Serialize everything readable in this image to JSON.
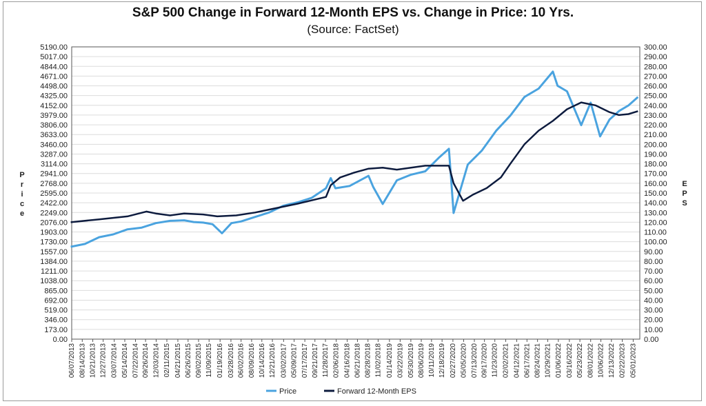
{
  "chart_data": {
    "type": "line",
    "title": "S&P 500 Change in Forward 12-Month EPS vs. Change in Price: 10 Yrs.",
    "subtitle": "(Source: FactSet)",
    "ylabel": "Price",
    "y2label": "EPS",
    "ylim": [
      0,
      5190
    ],
    "y2lim": [
      0,
      300
    ],
    "grid": true,
    "legend_position": "bottom-center",
    "y_ticks": [
      "5190.00",
      "5017.00",
      "4844.00",
      "4671.00",
      "4498.00",
      "4325.00",
      "4152.00",
      "3979.00",
      "3806.00",
      "3633.00",
      "3460.00",
      "3287.00",
      "3114.00",
      "2941.00",
      "2768.00",
      "2595.00",
      "2422.00",
      "2249.00",
      "2076.00",
      "1903.00",
      "1730.00",
      "1557.00",
      "1384.00",
      "1211.00",
      "1038.00",
      "865.00",
      "692.00",
      "519.00",
      "346.00",
      "173.00",
      "0.00"
    ],
    "y2_ticks": [
      "300.00",
      "290.00",
      "280.00",
      "270.00",
      "260.00",
      "250.00",
      "240.00",
      "230.00",
      "220.00",
      "210.00",
      "200.00",
      "190.00",
      "180.00",
      "170.00",
      "160.00",
      "150.00",
      "140.00",
      "130.00",
      "120.00",
      "110.00",
      "100.00",
      "90.00",
      "80.00",
      "70.00",
      "60.00",
      "50.00",
      "40.00",
      "30.00",
      "20.00",
      "10.00",
      "0.00"
    ],
    "x_ticks": [
      "06/07/2013",
      "08/14/2013",
      "10/21/2013",
      "12/27/2013",
      "03/07/2014",
      "05/14/2014",
      "07/22/2014",
      "09/26/2014",
      "12/03/2014",
      "02/11/2015",
      "04/21/2015",
      "06/26/2015",
      "09/02/2015",
      "11/09/2015",
      "01/19/2016",
      "03/28/2016",
      "06/02/2016",
      "08/09/2016",
      "10/14/2016",
      "12/21/2016",
      "03/02/2017",
      "05/09/2017",
      "07/17/2017",
      "09/21/2017",
      "11/28/2017",
      "02/06/2018",
      "04/16/2018",
      "06/21/2018",
      "08/28/2018",
      "11/02/2018",
      "01/14/2019",
      "03/22/2019",
      "05/30/2019",
      "08/06/2019",
      "10/11/2019",
      "12/18/2019",
      "02/27/2020",
      "05/05/2020",
      "07/13/2020",
      "09/17/2020",
      "11/23/2020",
      "02/02/2021",
      "04/12/2021",
      "06/17/2021",
      "08/24/2021",
      "10/29/2021",
      "01/06/2022",
      "03/16/2022",
      "05/23/2022",
      "08/01/2022",
      "10/06/2022",
      "12/13/2022",
      "02/22/2023",
      "05/01/2023"
    ],
    "series": [
      {
        "name": "Price",
        "axis": "left",
        "color": "#4aa3df",
        "x": [
          "2013-06",
          "2013-09",
          "2013-12",
          "2014-03",
          "2014-06",
          "2014-09",
          "2014-12",
          "2015-03",
          "2015-06",
          "2015-08",
          "2015-10",
          "2015-12",
          "2016-02",
          "2016-04",
          "2016-06",
          "2016-09",
          "2016-12",
          "2017-03",
          "2017-06",
          "2017-09",
          "2017-12",
          "2018-01",
          "2018-02",
          "2018-05",
          "2018-09",
          "2018-10",
          "2018-12",
          "2019-03",
          "2019-06",
          "2019-09",
          "2019-12",
          "2020-02",
          "2020-03",
          "2020-06",
          "2020-09",
          "2020-12",
          "2021-03",
          "2021-06",
          "2021-09",
          "2021-12",
          "2022-01",
          "2022-03",
          "2022-06",
          "2022-08",
          "2022-10",
          "2022-12",
          "2023-02",
          "2023-04",
          "2023-06"
        ],
        "values": [
          1640,
          1690,
          1810,
          1860,
          1950,
          1980,
          2060,
          2100,
          2110,
          2080,
          2070,
          2040,
          1880,
          2060,
          2090,
          2170,
          2250,
          2370,
          2430,
          2510,
          2680,
          2860,
          2680,
          2720,
          2900,
          2700,
          2400,
          2820,
          2920,
          2980,
          3230,
          3380,
          2240,
          3100,
          3350,
          3700,
          3970,
          4300,
          4450,
          4750,
          4500,
          4400,
          3800,
          4200,
          3600,
          3900,
          4050,
          4150,
          4300
        ]
      },
      {
        "name": "Forward 12-Month EPS",
        "axis": "right",
        "color": "#0d1b3e",
        "x": [
          "2013-06",
          "2013-12",
          "2014-06",
          "2014-10",
          "2014-12",
          "2015-03",
          "2015-06",
          "2015-10",
          "2016-01",
          "2016-05",
          "2016-09",
          "2016-12",
          "2017-06",
          "2017-12",
          "2018-01",
          "2018-03",
          "2018-06",
          "2018-09",
          "2018-12",
          "2019-03",
          "2019-06",
          "2019-09",
          "2019-12",
          "2020-02",
          "2020-03",
          "2020-05",
          "2020-07",
          "2020-10",
          "2021-01",
          "2021-03",
          "2021-06",
          "2021-09",
          "2021-12",
          "2022-03",
          "2022-06",
          "2022-09",
          "2022-12",
          "2023-02",
          "2023-04",
          "2023-06"
        ],
        "values": [
          120,
          123,
          126,
          131,
          129,
          127,
          129,
          128,
          126,
          127,
          130,
          133,
          139,
          146,
          158,
          166,
          171,
          175,
          176,
          174,
          176,
          178,
          178,
          178,
          160,
          142,
          148,
          155,
          166,
          180,
          200,
          214,
          224,
          236,
          243,
          240,
          233,
          230,
          231,
          234
        ]
      }
    ]
  },
  "legend": {
    "price": "Price",
    "eps": "Forward 12-Month EPS"
  },
  "axis_labels": {
    "left": "Price",
    "right": "EPS"
  }
}
